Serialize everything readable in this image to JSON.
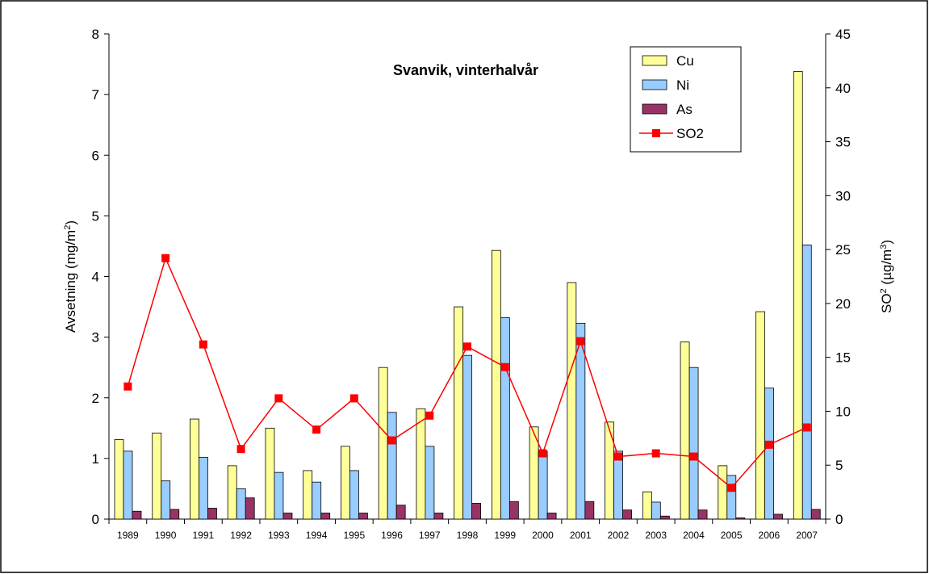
{
  "chart_data": {
    "type": "bar-line",
    "title": "Svanvik, vinterhalvår",
    "y_label": [
      "Avsetning (mg/m",
      "2",
      ")"
    ],
    "y2_label": [
      "SO",
      "2",
      " (µg/m",
      "3",
      ")"
    ],
    "categories": [
      "1989",
      "1990",
      "1991",
      "1992",
      "1993",
      "1994",
      "1995",
      "1996",
      "1997",
      "1998",
      "1999",
      "2000",
      "2001",
      "2002",
      "2003",
      "2004",
      "2005",
      "2006",
      "2007"
    ],
    "series": [
      {
        "name": "Cu",
        "type": "bar",
        "color": "#ffff99",
        "values": [
          1.31,
          1.42,
          1.65,
          0.88,
          1.5,
          0.8,
          1.2,
          2.5,
          1.82,
          3.5,
          4.43,
          1.52,
          3.9,
          1.6,
          0.45,
          2.92,
          0.88,
          3.42,
          7.38
        ]
      },
      {
        "name": "Ni",
        "type": "bar",
        "color": "#99ccff",
        "values": [
          1.12,
          0.63,
          1.02,
          0.5,
          0.77,
          0.61,
          0.8,
          1.76,
          1.2,
          2.7,
          3.32,
          1.12,
          3.23,
          1.12,
          0.28,
          2.5,
          0.72,
          2.16,
          4.52
        ]
      },
      {
        "name": "As",
        "type": "bar",
        "color": "#993366",
        "values": [
          0.13,
          0.16,
          0.18,
          0.35,
          0.1,
          0.1,
          0.1,
          0.23,
          0.1,
          0.26,
          0.29,
          0.1,
          0.29,
          0.15,
          0.05,
          0.15,
          0.02,
          0.08,
          0.16
        ]
      },
      {
        "name": "SO2",
        "type": "line",
        "axis": "y2",
        "color": "#ff0000",
        "values": [
          12.3,
          24.2,
          16.2,
          6.5,
          11.2,
          8.3,
          11.2,
          7.3,
          9.6,
          16.0,
          14.1,
          6.1,
          16.5,
          5.8,
          6.1,
          5.8,
          2.9,
          6.9,
          8.5
        ]
      }
    ],
    "ylim": [
      0,
      8
    ],
    "yticks": [
      0,
      1,
      2,
      3,
      4,
      5,
      6,
      7,
      8
    ],
    "y2lim": [
      0,
      45
    ],
    "y2ticks": [
      0,
      5,
      10,
      15,
      20,
      25,
      30,
      35,
      40,
      45
    ],
    "grid": false,
    "legend": "top-right"
  }
}
